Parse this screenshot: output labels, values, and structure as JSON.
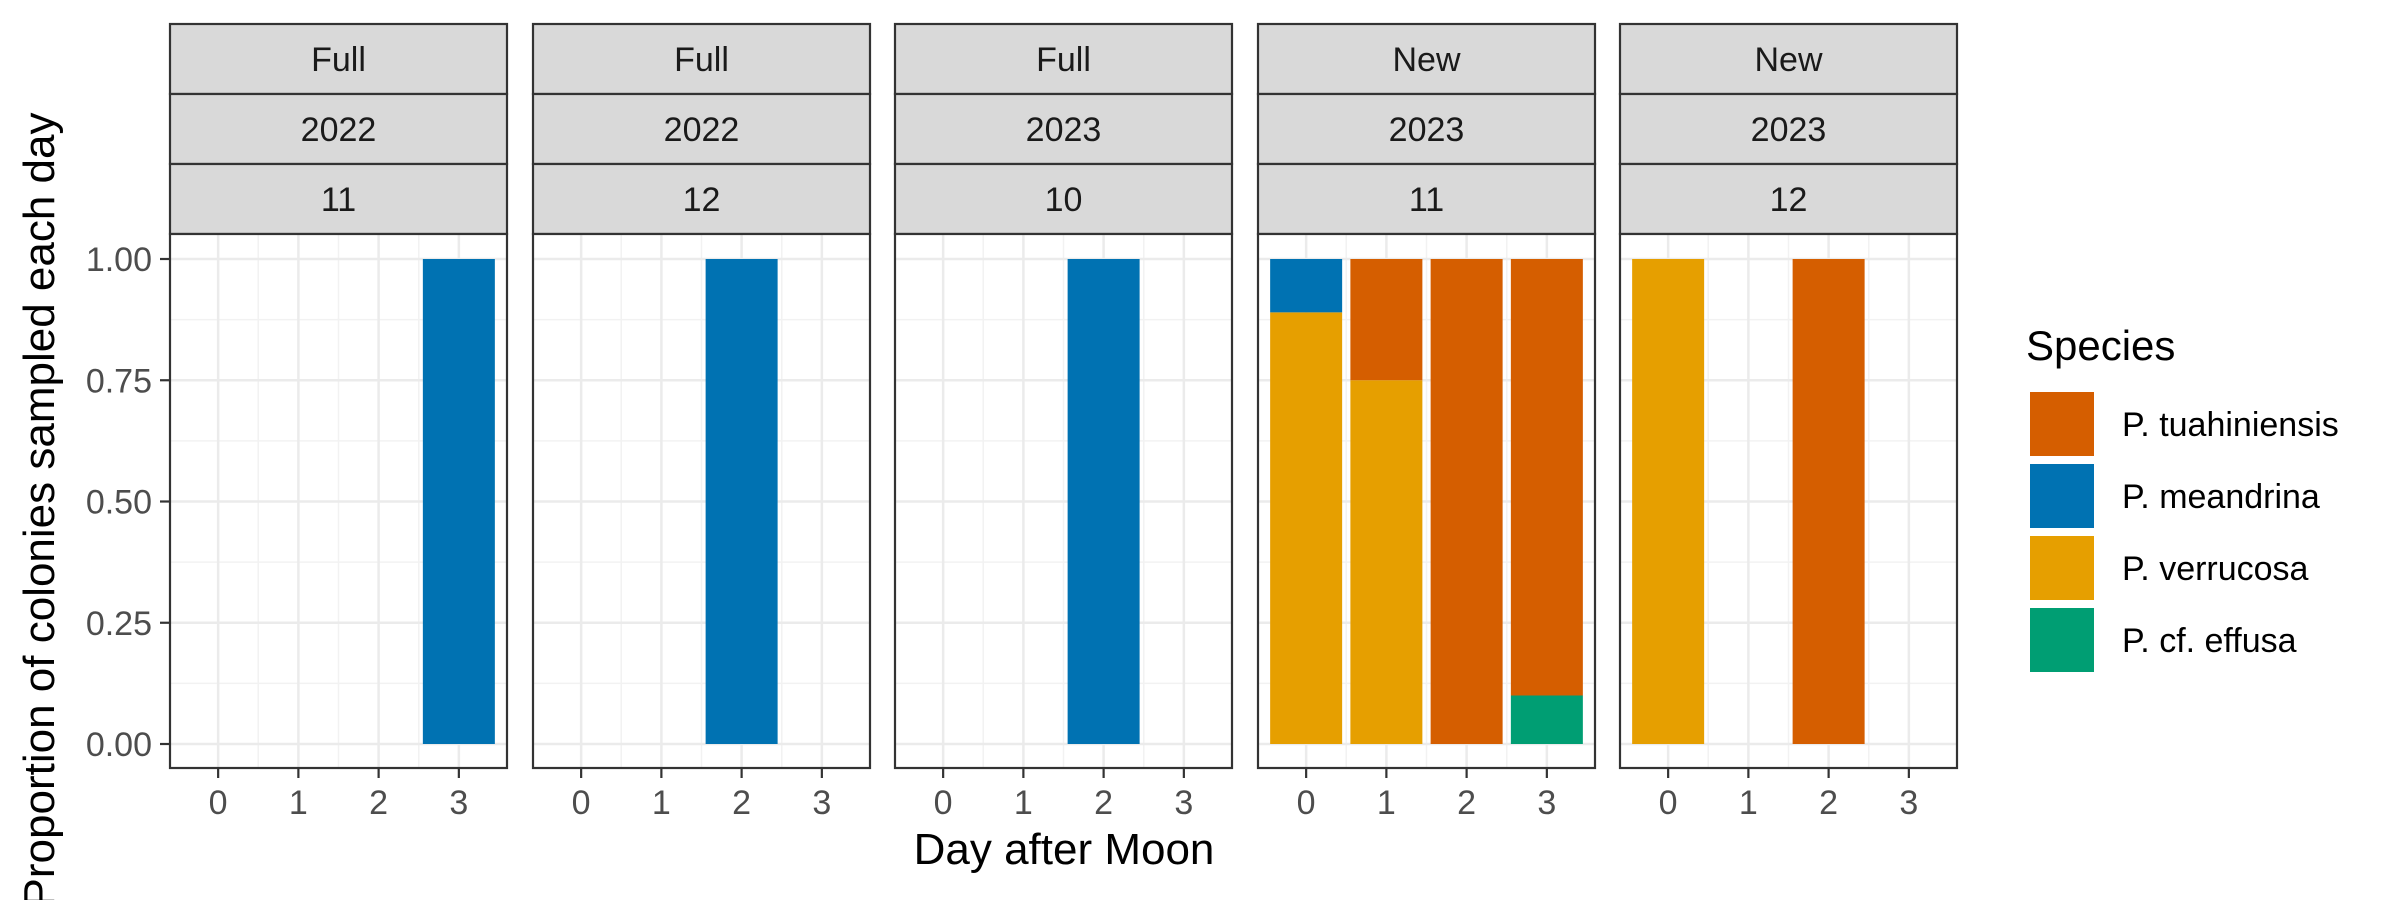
{
  "chart_data": {
    "type": "bar",
    "stacked": true,
    "xlabel": "Day after Moon",
    "ylabel": "Proportion of colonies sampled each day",
    "ylim": [
      0,
      1
    ],
    "y_ticks": [
      "0.00",
      "0.25",
      "0.50",
      "0.75",
      "1.00"
    ],
    "categories": [
      "0",
      "1",
      "2",
      "3"
    ],
    "grid": true,
    "legend": {
      "title": "Species",
      "placement": "right",
      "entries": [
        {
          "name": "P. tuahiniensis",
          "color": "#D55E00"
        },
        {
          "name": "P. meandrina",
          "color": "#0072B2"
        },
        {
          "name": "P. verrucosa",
          "color": "#E69F00"
        },
        {
          "name": "P. cf. effusa",
          "color": "#009E73"
        }
      ]
    },
    "panels": [
      {
        "strips": [
          "Full",
          "2022",
          "11"
        ],
        "bars": [
          {
            "day": "3",
            "segments": [
              {
                "species": "P. meandrina",
                "value": 1.0
              }
            ]
          }
        ]
      },
      {
        "strips": [
          "Full",
          "2022",
          "12"
        ],
        "bars": [
          {
            "day": "2",
            "segments": [
              {
                "species": "P. meandrina",
                "value": 1.0
              }
            ]
          }
        ]
      },
      {
        "strips": [
          "Full",
          "2023",
          "10"
        ],
        "bars": [
          {
            "day": "2",
            "segments": [
              {
                "species": "P. meandrina",
                "value": 1.0
              }
            ]
          }
        ]
      },
      {
        "strips": [
          "New",
          "2023",
          "11"
        ],
        "bars": [
          {
            "day": "0",
            "segments": [
              {
                "species": "P. verrucosa",
                "value": 0.89
              },
              {
                "species": "P. meandrina",
                "value": 0.11
              }
            ]
          },
          {
            "day": "1",
            "segments": [
              {
                "species": "P. verrucosa",
                "value": 0.75
              },
              {
                "species": "P. tuahiniensis",
                "value": 0.25
              }
            ]
          },
          {
            "day": "2",
            "segments": [
              {
                "species": "P. tuahiniensis",
                "value": 1.0
              }
            ]
          },
          {
            "day": "3",
            "segments": [
              {
                "species": "P. cf. effusa",
                "value": 0.1
              },
              {
                "species": "P. tuahiniensis",
                "value": 0.9
              }
            ]
          }
        ]
      },
      {
        "strips": [
          "New",
          "2023",
          "12"
        ],
        "bars": [
          {
            "day": "0",
            "segments": [
              {
                "species": "P. verrucosa",
                "value": 1.0
              }
            ]
          },
          {
            "day": "2",
            "segments": [
              {
                "species": "P. tuahiniensis",
                "value": 1.0
              }
            ]
          }
        ]
      }
    ]
  }
}
